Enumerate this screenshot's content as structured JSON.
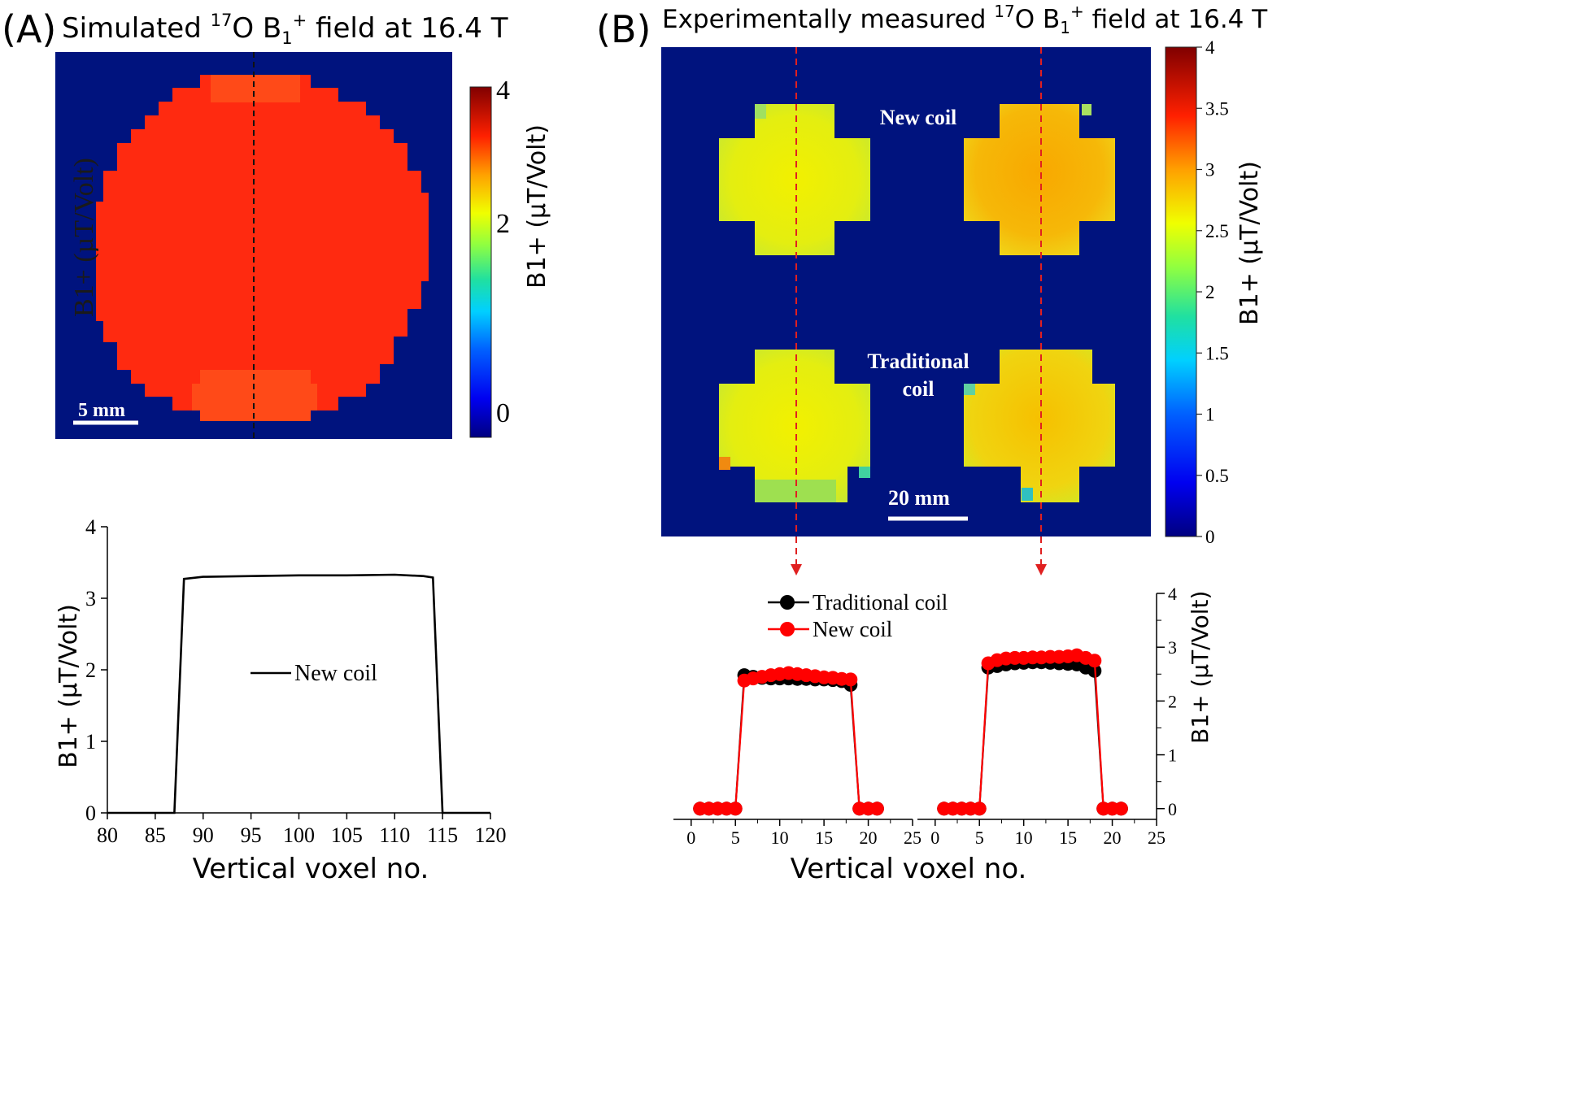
{
  "panel_a": {
    "letter": "(A)",
    "title_pre": "Simulated ",
    "title_sup_17": "17",
    "title_mid": "O B",
    "title_sub_1": "1",
    "title_sup_plus": "+",
    "title_post": " field at 16.4 T",
    "scale_bar_label": "5 mm",
    "ghost_axis_label": "B1+ (µT/Volt)",
    "colorbar_label": "B1+ (µT/Volt)",
    "colorbar_ticks": [
      "4",
      "2",
      "0"
    ]
  },
  "panel_b": {
    "letter": "(B)",
    "title_pre": "Experimentally measured ",
    "title_sup_17": "17",
    "title_mid": "O B",
    "title_sub_1": "1",
    "title_sup_plus": "+",
    "title_post": " field at 16.4 T",
    "label_new_coil": "New coil",
    "label_traditional_1": "Traditional",
    "label_traditional_2": "coil",
    "scale_bar_label": "20 mm",
    "colorbar_label": "B1+ (µT/Volt)",
    "colorbar_ticks": [
      "4",
      "3.5",
      "3",
      "2.5",
      "2",
      "1.5",
      "1",
      "0.5",
      "0"
    ]
  },
  "colors": {
    "background_map": "#00137e",
    "sim_red": "#ff2a10",
    "sim_red_light": "#ff4a18",
    "profile_line": "#000000",
    "traditional": "#000000",
    "new_coil": "#ff0000",
    "arrow": "#e02020"
  },
  "chart_data": [
    {
      "type": "line",
      "panel": "A (lower)",
      "title": "",
      "xlabel": "Vertical voxel no.",
      "ylabel": "B1+ (µT/Volt)",
      "xlim": [
        80,
        120
      ],
      "ylim": [
        0,
        4
      ],
      "xticks": [
        "80",
        "85",
        "90",
        "95",
        "100",
        "105",
        "110",
        "115",
        "120"
      ],
      "yticks": [
        "0",
        "1",
        "2",
        "3",
        "4"
      ],
      "legend": [
        "New coil"
      ],
      "legend_position": "center",
      "series": [
        {
          "name": "New coil",
          "x": [
            80,
            87,
            88,
            90,
            95,
            100,
            105,
            110,
            113,
            114,
            115,
            120
          ],
          "y": [
            0,
            0,
            3.27,
            3.3,
            3.31,
            3.32,
            3.32,
            3.33,
            3.31,
            3.29,
            0,
            0
          ]
        }
      ]
    },
    {
      "type": "line",
      "panel": "B (lower left)",
      "xlabel": "Vertical voxel no.",
      "ylabel": "",
      "xlim": [
        -2,
        25
      ],
      "ylim": [
        -0.2,
        4
      ],
      "xticks": [
        "0",
        "5",
        "10",
        "15",
        "20",
        "25"
      ],
      "legend": [
        "Traditional coil",
        "New coil"
      ],
      "legend_position": "top-left",
      "series": [
        {
          "name": "Traditional coil",
          "x": [
            1,
            2,
            3,
            4,
            5,
            6,
            7,
            8,
            9,
            10,
            11,
            12,
            13,
            14,
            15,
            16,
            17,
            18,
            19,
            20,
            21
          ],
          "y": [
            0,
            0,
            0,
            0,
            0,
            2.48,
            2.45,
            2.43,
            2.42,
            2.42,
            2.42,
            2.41,
            2.41,
            2.4,
            2.4,
            2.39,
            2.37,
            2.3,
            0,
            0,
            0
          ]
        },
        {
          "name": "New coil",
          "x": [
            1,
            2,
            3,
            4,
            5,
            6,
            7,
            8,
            9,
            10,
            11,
            12,
            13,
            14,
            15,
            16,
            17,
            18,
            19,
            20,
            21
          ],
          "y": [
            0,
            0,
            0,
            0,
            0,
            2.38,
            2.42,
            2.45,
            2.48,
            2.5,
            2.52,
            2.5,
            2.48,
            2.46,
            2.44,
            2.43,
            2.41,
            2.4,
            0,
            0,
            0
          ]
        }
      ]
    },
    {
      "type": "line",
      "panel": "B (lower right)",
      "xlabel": "Vertical voxel no.",
      "ylabel": "B1+ (µT/Volt)",
      "xlim": [
        -2,
        25
      ],
      "ylim": [
        -0.2,
        4
      ],
      "xticks": [
        "0",
        "5",
        "10",
        "15",
        "20",
        "25"
      ],
      "yticks": [
        "0",
        "1",
        "2",
        "3",
        "4"
      ],
      "series": [
        {
          "name": "Traditional coil",
          "x": [
            1,
            2,
            3,
            4,
            5,
            6,
            7,
            8,
            9,
            10,
            11,
            12,
            13,
            14,
            15,
            16,
            17,
            18,
            19,
            20,
            21
          ],
          "y": [
            0,
            0,
            0,
            0,
            0,
            2.62,
            2.65,
            2.68,
            2.7,
            2.71,
            2.72,
            2.72,
            2.71,
            2.7,
            2.69,
            2.68,
            2.62,
            2.56,
            0,
            0,
            0
          ]
        },
        {
          "name": "New coil",
          "x": [
            1,
            2,
            3,
            4,
            5,
            6,
            7,
            8,
            9,
            10,
            11,
            12,
            13,
            14,
            15,
            16,
            17,
            18,
            19,
            20,
            21
          ],
          "y": [
            0,
            0,
            0,
            0,
            0,
            2.7,
            2.76,
            2.79,
            2.8,
            2.8,
            2.81,
            2.81,
            2.82,
            2.82,
            2.83,
            2.85,
            2.8,
            2.75,
            0,
            0,
            0
          ]
        }
      ]
    }
  ]
}
